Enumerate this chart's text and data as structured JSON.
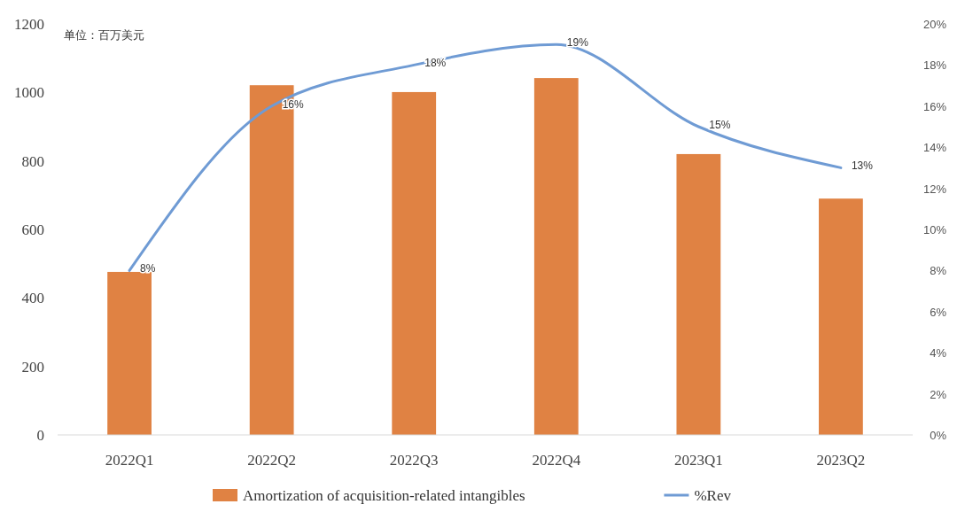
{
  "chart_data": {
    "type": "bar",
    "categories": [
      "2022Q1",
      "2022Q2",
      "2022Q3",
      "2022Q4",
      "2023Q1",
      "2023Q2"
    ],
    "series": [
      {
        "name": "Amortization of acquisition-related intangibles",
        "color": "#e08243",
        "values": [
          476,
          1021,
          1001,
          1042,
          820,
          690
        ]
      },
      {
        "name": "%Rev",
        "type": "line",
        "axis": "y2",
        "color": "#6f9bd4",
        "values": [
          8,
          16,
          18,
          19,
          15,
          13
        ],
        "value_labels": [
          "8%",
          "16%",
          "18%",
          "19%",
          "15%",
          "13%"
        ]
      }
    ],
    "ylim": [
      0,
      1200
    ],
    "yticks": [
      0,
      200,
      400,
      600,
      800,
      1000,
      1200
    ],
    "y2lim": [
      0,
      20
    ],
    "y2ticks": [
      {
        "value": 0,
        "label": "0%"
      },
      {
        "value": 2,
        "label": "2%"
      },
      {
        "value": 4,
        "label": "4%"
      },
      {
        "value": 6,
        "label": "6%"
      },
      {
        "value": 8,
        "label": "8%"
      },
      {
        "value": 10,
        "label": "10%"
      },
      {
        "value": 12,
        "label": "12%"
      },
      {
        "value": 14,
        "label": "14%"
      },
      {
        "value": 16,
        "label": "16%"
      },
      {
        "value": 18,
        "label": "18%"
      },
      {
        "value": 20,
        "label": "20%"
      }
    ],
    "legend": "bottom",
    "marker": "none",
    "annotations": [
      "单位：百万美元"
    ]
  }
}
